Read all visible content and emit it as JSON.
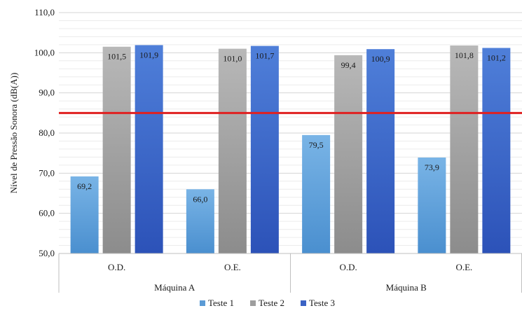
{
  "chart_data": {
    "type": "bar",
    "title": "",
    "xlabel": "",
    "ylabel": "Nível de Pressão Sonora (dB(A))",
    "ylim": [
      50,
      110
    ],
    "yticks": [
      "50,0",
      "60,0",
      "70,0",
      "80,0",
      "90,0",
      "100,0",
      "110,0"
    ],
    "groups": [
      {
        "label": "Máquina A",
        "categories": [
          "O.D.",
          "O.E."
        ]
      },
      {
        "label": "Máquina B",
        "categories": [
          "O.D.",
          "O.E."
        ]
      }
    ],
    "series": [
      {
        "name": "Teste 1",
        "values": [
          69.2,
          66.0,
          79.5,
          73.9
        ],
        "labels": [
          "69,2",
          "66,0",
          "79,5",
          "73,9"
        ],
        "color": "#5b9bd5"
      },
      {
        "name": "Teste 2",
        "values": [
          101.5,
          101.0,
          99.4,
          101.8
        ],
        "labels": [
          "101,5",
          "101,0",
          "99,4",
          "101,8"
        ],
        "color": "#9e9e9e"
      },
      {
        "name": "Teste 3",
        "values": [
          101.9,
          101.7,
          100.9,
          101.2
        ],
        "labels": [
          "101,9",
          "101,7",
          "100,9",
          "101,2"
        ],
        "color": "#3a62c4"
      }
    ],
    "reference_line": {
      "value": 85,
      "color": "#e02020"
    },
    "grid": true,
    "legend_position": "bottom"
  }
}
